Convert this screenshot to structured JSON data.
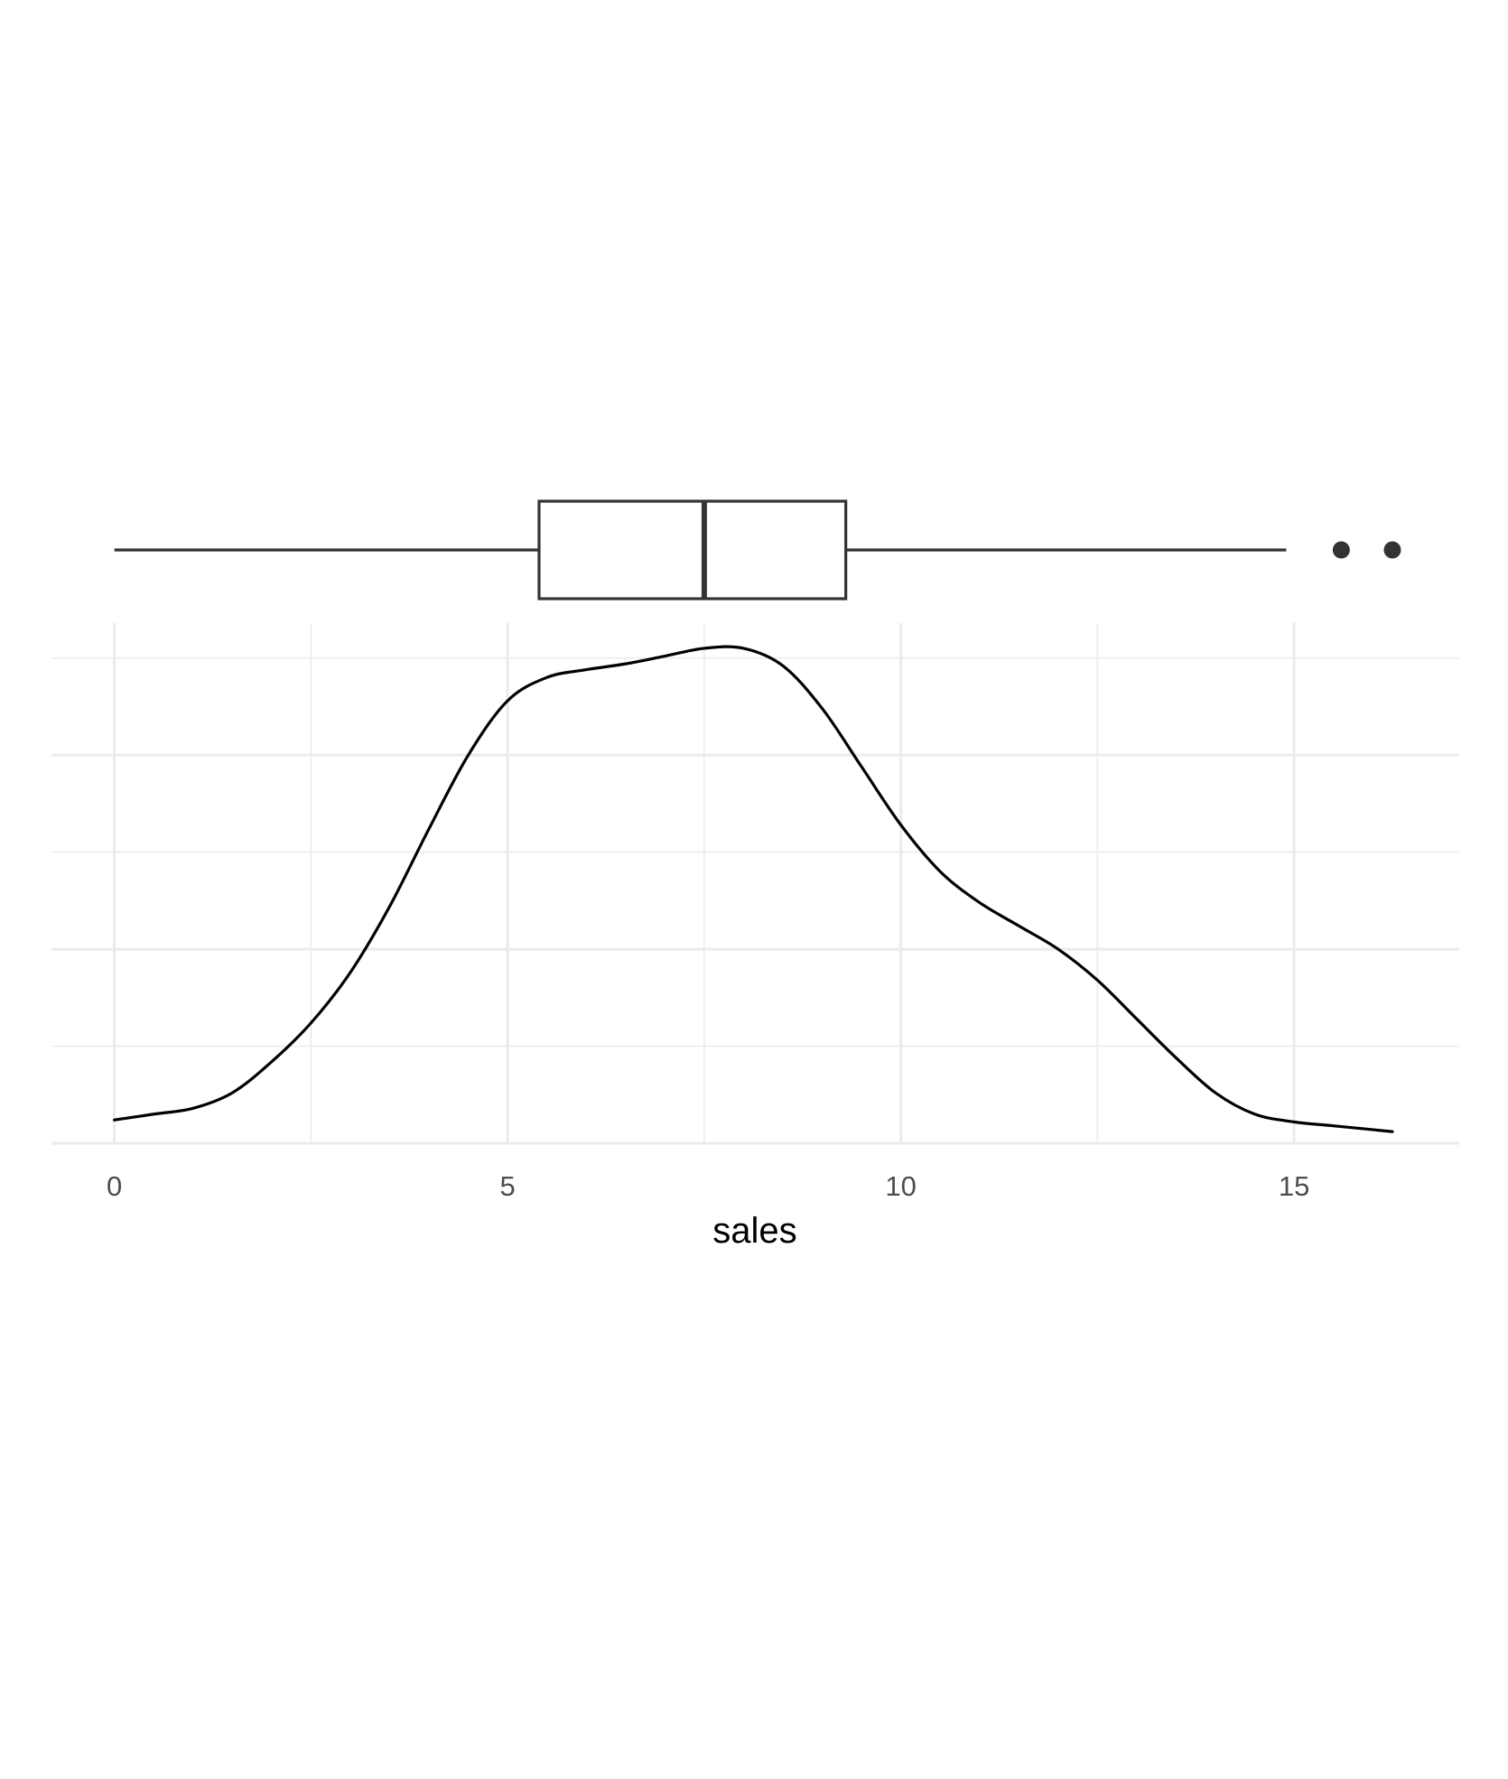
{
  "chart_data": [
    {
      "type": "boxplot",
      "variable": "sales",
      "min": 0,
      "q1": 5.4,
      "median": 7.5,
      "q3": 9.3,
      "max": 14.9,
      "outliers": [
        15.6,
        16.25
      ],
      "colors": {
        "stroke": "#333333",
        "fill": "#ffffff"
      }
    },
    {
      "type": "density",
      "xlabel": "sales",
      "ylabel": "",
      "xlim": [
        -0.8,
        17.1
      ],
      "ylim": [
        0,
        0.134
      ],
      "x_ticks": [
        0,
        5,
        10,
        15
      ],
      "x_tick_labels": [
        "0",
        "5",
        "10",
        "15"
      ],
      "y_tick_labels_shown": false,
      "grid": true,
      "colors": {
        "line": "#000000",
        "grid": "#ebebeb",
        "tick_text": "#4d4d4d"
      },
      "x": [
        0,
        0.5,
        1,
        1.5,
        2,
        2.5,
        3,
        3.5,
        4,
        4.5,
        5,
        5.5,
        6,
        6.5,
        7,
        7.5,
        8,
        8.5,
        9,
        9.5,
        10,
        10.5,
        11,
        11.5,
        12,
        12.5,
        13,
        13.5,
        14,
        14.5,
        15,
        15.5,
        16,
        16.25
      ],
      "y": [
        0.006,
        0.0075,
        0.009,
        0.013,
        0.021,
        0.031,
        0.044,
        0.061,
        0.081,
        0.1,
        0.114,
        0.12,
        0.122,
        0.1235,
        0.1255,
        0.1275,
        0.1275,
        0.123,
        0.112,
        0.097,
        0.082,
        0.07,
        0.062,
        0.056,
        0.05,
        0.042,
        0.032,
        0.022,
        0.013,
        0.0075,
        0.0055,
        0.0045,
        0.0035,
        0.003
      ]
    }
  ]
}
